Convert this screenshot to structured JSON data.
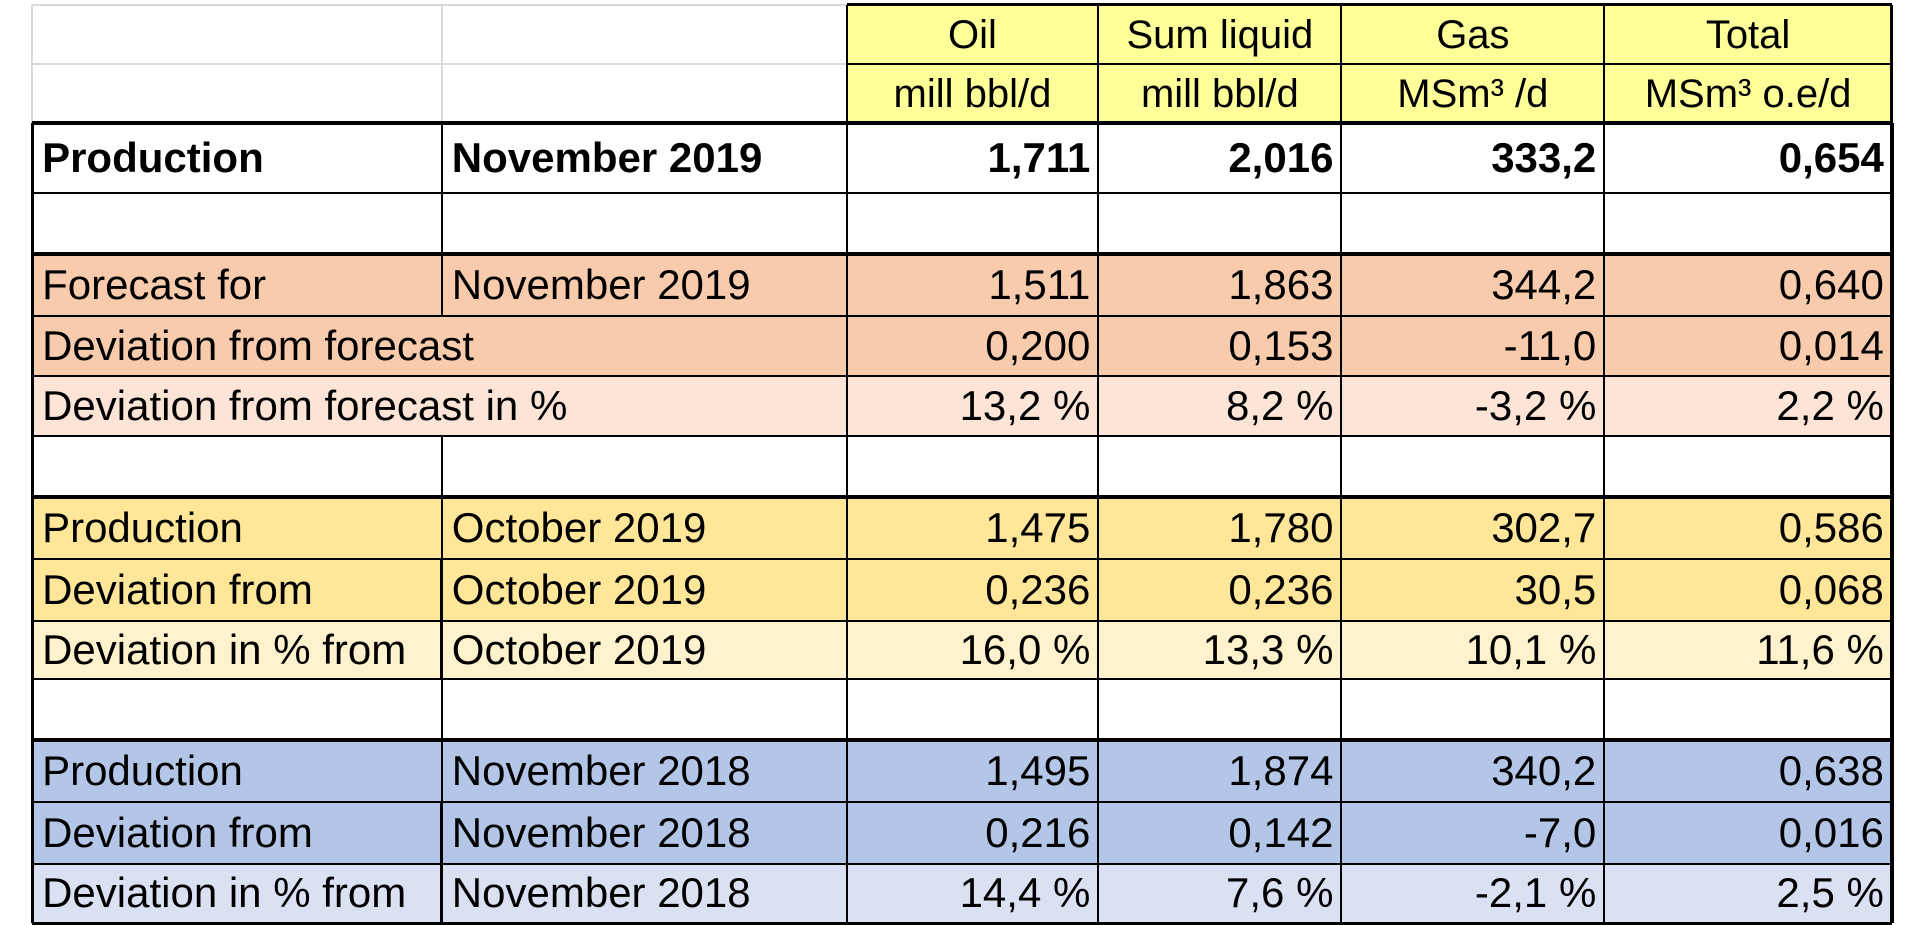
{
  "header": {
    "quantities": [
      "Oil",
      "Sum liquid",
      "Gas",
      "Total"
    ],
    "units": [
      "mill bbl/d",
      "mill bbl/d",
      "MSm³ /d",
      "MSm³ o.e/d"
    ]
  },
  "production_row": {
    "label": "Production",
    "period": "November 2019",
    "values": [
      "1,711",
      "2,016",
      "333,2",
      "0,654"
    ]
  },
  "sections": [
    {
      "name": "forecast",
      "rows": [
        {
          "label": "Forecast for",
          "period": "November 2019",
          "values": [
            "1,511",
            "1,863",
            "344,2",
            "0,640"
          ],
          "color": "#f8cbad"
        },
        {
          "label": "Deviation from forecast",
          "period": "",
          "values": [
            "0,200",
            "0,153",
            "-11,0",
            "0,014"
          ],
          "color": "#f8cbad"
        },
        {
          "label": "Deviation from forecast in %",
          "period": "",
          "values": [
            "13,2 %",
            "8,2 %",
            "-3,2 %",
            "2,2 %"
          ],
          "color": "#fce4d6"
        }
      ]
    },
    {
      "name": "previous-month",
      "rows": [
        {
          "label": "Production",
          "period": "October 2019",
          "values": [
            "1,475",
            "1,780",
            "302,7",
            "0,586"
          ],
          "color": "#ffe699"
        },
        {
          "label": "Deviation from",
          "period": "October 2019",
          "values": [
            "0,236",
            "0,236",
            "30,5",
            "0,068"
          ],
          "color": "#ffe699"
        },
        {
          "label": "Deviation  in % from",
          "period": "October 2019",
          "values": [
            "16,0 %",
            "13,3 %",
            "10,1 %",
            "11,6 %"
          ],
          "color": "#fff2cc"
        }
      ]
    },
    {
      "name": "previous-year",
      "rows": [
        {
          "label": "Production",
          "period": "November 2018",
          "values": [
            "1,495",
            "1,874",
            "340,2",
            "0,638"
          ],
          "color": "#b4c6e7"
        },
        {
          "label": "Deviation from",
          "period": "November 2018",
          "values": [
            "0,216",
            "0,142",
            "-7,0",
            "0,016"
          ],
          "color": "#b4c6e7"
        },
        {
          "label": "Deviation  in % from",
          "period": "November 2018",
          "values": [
            "14,4 %",
            "7,6 %",
            "-2,1 %",
            "2,5 %"
          ],
          "color": "#d9e1f2"
        }
      ]
    }
  ],
  "colors": {
    "header_fill": "#ffff99",
    "grid_light": "#d9d9d9",
    "grid_dark": "#000000"
  }
}
